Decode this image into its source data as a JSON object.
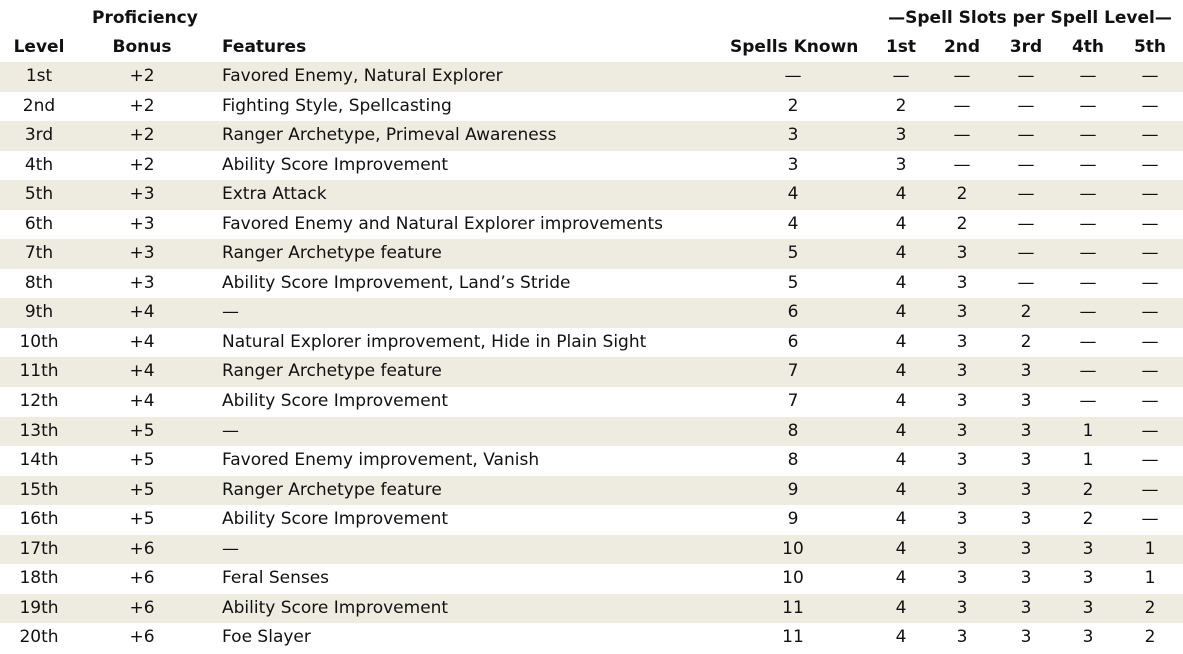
{
  "headers": {
    "level": "Level",
    "prof_top": "Proficiency",
    "prof_bottom": "Bonus",
    "features": "Features",
    "spells_known": "Spells Known",
    "spell_slots": "—Spell Slots per Spell Level—",
    "s1": "1st",
    "s2": "2nd",
    "s3": "3rd",
    "s4": "4th",
    "s5": "5th"
  },
  "rows": [
    {
      "level": "1st",
      "prof": "+2",
      "features": "Favored Enemy, Natural Explorer",
      "known": "—",
      "s1": "—",
      "s2": "—",
      "s3": "—",
      "s4": "—",
      "s5": "—"
    },
    {
      "level": "2nd",
      "prof": "+2",
      "features": "Fighting Style, Spellcasting",
      "known": "2",
      "s1": "2",
      "s2": "—",
      "s3": "—",
      "s4": "—",
      "s5": "—"
    },
    {
      "level": "3rd",
      "prof": "+2",
      "features": "Ranger Archetype, Primeval Awareness",
      "known": "3",
      "s1": "3",
      "s2": "—",
      "s3": "—",
      "s4": "—",
      "s5": "—"
    },
    {
      "level": "4th",
      "prof": "+2",
      "features": "Ability Score Improvement",
      "known": "3",
      "s1": "3",
      "s2": "—",
      "s3": "—",
      "s4": "—",
      "s5": "—"
    },
    {
      "level": "5th",
      "prof": "+3",
      "features": "Extra Attack",
      "known": "4",
      "s1": "4",
      "s2": "2",
      "s3": "—",
      "s4": "—",
      "s5": "—"
    },
    {
      "level": "6th",
      "prof": "+3",
      "features": "Favored Enemy and Natural Explorer improvements",
      "known": "4",
      "s1": "4",
      "s2": "2",
      "s3": "—",
      "s4": "—",
      "s5": "—"
    },
    {
      "level": "7th",
      "prof": "+3",
      "features": "Ranger Archetype feature",
      "known": "5",
      "s1": "4",
      "s2": "3",
      "s3": "—",
      "s4": "—",
      "s5": "—"
    },
    {
      "level": "8th",
      "prof": "+3",
      "features": "Ability Score Improvement, Land’s Stride",
      "known": "5",
      "s1": "4",
      "s2": "3",
      "s3": "—",
      "s4": "—",
      "s5": "—"
    },
    {
      "level": "9th",
      "prof": "+4",
      "features": "—",
      "known": "6",
      "s1": "4",
      "s2": "3",
      "s3": "2",
      "s4": "—",
      "s5": "—"
    },
    {
      "level": "10th",
      "prof": "+4",
      "features": "Natural Explorer improvement, Hide in Plain Sight",
      "known": "6",
      "s1": "4",
      "s2": "3",
      "s3": "2",
      "s4": "—",
      "s5": "—"
    },
    {
      "level": "11th",
      "prof": "+4",
      "features": "Ranger Archetype feature",
      "known": "7",
      "s1": "4",
      "s2": "3",
      "s3": "3",
      "s4": "—",
      "s5": "—"
    },
    {
      "level": "12th",
      "prof": "+4",
      "features": "Ability Score Improvement",
      "known": "7",
      "s1": "4",
      "s2": "3",
      "s3": "3",
      "s4": "—",
      "s5": "—"
    },
    {
      "level": "13th",
      "prof": "+5",
      "features": "—",
      "known": "8",
      "s1": "4",
      "s2": "3",
      "s3": "3",
      "s4": "1",
      "s5": "—"
    },
    {
      "level": "14th",
      "prof": "+5",
      "features": "Favored Enemy improvement, Vanish",
      "known": "8",
      "s1": "4",
      "s2": "3",
      "s3": "3",
      "s4": "1",
      "s5": "—"
    },
    {
      "level": "15th",
      "prof": "+5",
      "features": "Ranger Archetype feature",
      "known": "9",
      "s1": "4",
      "s2": "3",
      "s3": "3",
      "s4": "2",
      "s5": "—"
    },
    {
      "level": "16th",
      "prof": "+5",
      "features": "Ability Score Improvement",
      "known": "9",
      "s1": "4",
      "s2": "3",
      "s3": "3",
      "s4": "2",
      "s5": "—"
    },
    {
      "level": "17th",
      "prof": "+6",
      "features": "—",
      "known": "10",
      "s1": "4",
      "s2": "3",
      "s3": "3",
      "s4": "3",
      "s5": "1"
    },
    {
      "level": "18th",
      "prof": "+6",
      "features": "Feral Senses",
      "known": "10",
      "s1": "4",
      "s2": "3",
      "s3": "3",
      "s4": "3",
      "s5": "1"
    },
    {
      "level": "19th",
      "prof": "+6",
      "features": "Ability Score Improvement",
      "known": "11",
      "s1": "4",
      "s2": "3",
      "s3": "3",
      "s4": "3",
      "s5": "2"
    },
    {
      "level": "20th",
      "prof": "+6",
      "features": "Foe Slayer",
      "known": "11",
      "s1": "4",
      "s2": "3",
      "s3": "3",
      "s4": "3",
      "s5": "2"
    }
  ],
  "colors": {
    "stripe": "#eeece1",
    "text": "#111111"
  }
}
